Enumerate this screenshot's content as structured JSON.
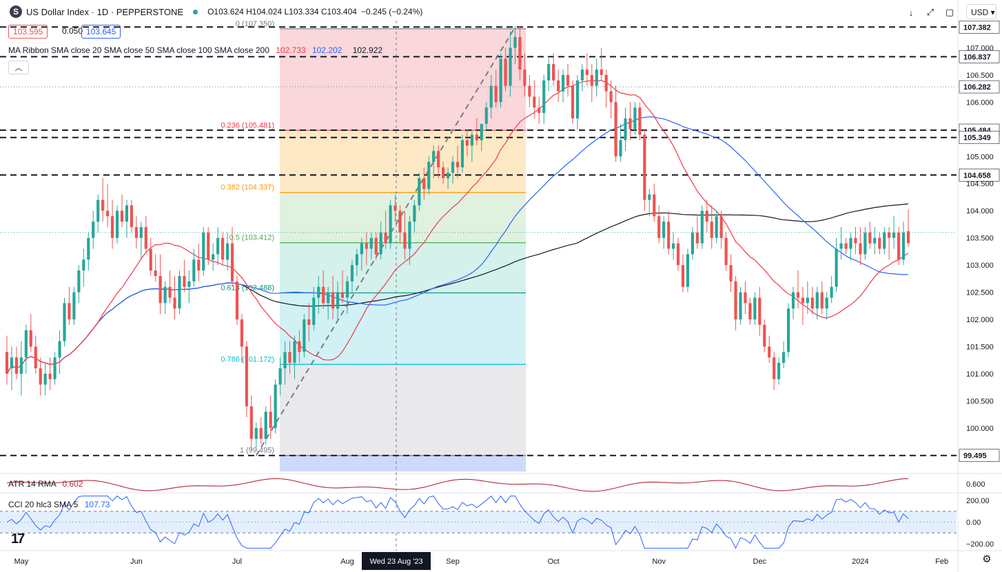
{
  "header": {
    "logo_letter": "S",
    "title": "US Dollar Index · 1D · PEPPERSTONE",
    "ohlc": "O103.624 H104.024 L103.334 C103.404",
    "change": "−0.245 (−0.24%)"
  },
  "quote": {
    "sell": "103.595",
    "spread": "0.050",
    "buy": "103.645"
  },
  "ribbon": {
    "label": "MA Ribbon SMA close 20 SMA close 50 SMA close 100 SMA close 200",
    "v20": "102.733",
    "v50": "102.202",
    "v100": "",
    "v200": "102.922"
  },
  "toolbar": {
    "down": "↓",
    "expand": "⤢",
    "square": "▢",
    "currency": "USD"
  },
  "panels": {
    "atr": {
      "label": "ATR 14 RMA",
      "value": "0.602"
    },
    "cci": {
      "label": "CCI 20 hlc3 SMA 5",
      "value": "107.73"
    }
  },
  "crosshair_date": "Wed 23 Aug '23",
  "colors": {
    "up": "#26a69a",
    "down": "#ef5350",
    "sma20": "#f23645",
    "sma50": "#2962ff",
    "sma200": "#131722"
  },
  "chart_data": {
    "type": "candlestick",
    "title": "US Dollar Index · 1D · PEPPERSTONE",
    "ylim": [
      99.2,
      107.5
    ],
    "y_ticks": [
      100.0,
      100.5,
      101.0,
      101.5,
      102.0,
      102.5,
      103.0,
      103.5,
      104.0,
      104.5,
      105.0,
      105.5,
      106.0,
      106.5,
      107.0
    ],
    "x_ticks": [
      "May",
      "Jun",
      "Jul",
      "Aug",
      "Sep",
      "Oct",
      "Nov",
      "Dec",
      "2024",
      "Feb"
    ],
    "horizontal_levels": [
      107.382,
      106.837,
      105.484,
      105.349,
      104.658,
      99.495
    ],
    "dotted_levels": [
      106.282,
      103.6
    ],
    "fibonacci": [
      {
        "ratio": "0",
        "price": 107.35
      },
      {
        "ratio": "0.236",
        "price": 105.481
      },
      {
        "ratio": "0.382",
        "price": 104.337
      },
      {
        "ratio": "0.5",
        "price": 103.412
      },
      {
        "ratio": "0.618",
        "price": 102.488
      },
      {
        "ratio": "0.786",
        "price": 101.172
      },
      {
        "ratio": "1",
        "price": 99.495
      }
    ],
    "candles": [
      [
        101.4,
        101.7,
        100.8,
        101.0
      ],
      [
        101.1,
        101.5,
        100.7,
        101.3
      ],
      [
        101.3,
        101.5,
        100.9,
        101.0
      ],
      [
        101.0,
        101.6,
        100.6,
        101.3
      ],
      [
        101.3,
        101.9,
        101.0,
        101.8
      ],
      [
        101.8,
        102.1,
        101.4,
        101.5
      ],
      [
        101.5,
        101.7,
        101.0,
        101.1
      ],
      [
        101.1,
        101.3,
        100.6,
        100.8
      ],
      [
        100.8,
        101.2,
        100.6,
        101.0
      ],
      [
        101.0,
        101.3,
        100.7,
        100.9
      ],
      [
        100.9,
        101.4,
        100.8,
        101.3
      ],
      [
        101.3,
        101.8,
        101.0,
        101.6
      ],
      [
        101.6,
        102.4,
        101.5,
        102.3
      ],
      [
        102.3,
        102.6,
        101.9,
        102.0
      ],
      [
        102.0,
        102.6,
        101.9,
        102.5
      ],
      [
        102.5,
        103.0,
        102.3,
        102.9
      ],
      [
        102.9,
        103.3,
        102.6,
        103.1
      ],
      [
        103.1,
        103.6,
        102.9,
        103.5
      ],
      [
        103.5,
        104.0,
        103.3,
        103.8
      ],
      [
        103.8,
        104.3,
        103.6,
        104.2
      ],
      [
        104.2,
        104.6,
        103.8,
        104.0
      ],
      [
        104.0,
        104.5,
        103.7,
        103.9
      ],
      [
        103.9,
        104.2,
        103.3,
        103.5
      ],
      [
        103.5,
        104.1,
        103.4,
        104.0
      ],
      [
        104.0,
        104.3,
        103.7,
        103.8
      ],
      [
        103.8,
        104.2,
        103.5,
        104.1
      ],
      [
        104.1,
        104.2,
        103.6,
        103.7
      ],
      [
        103.7,
        103.9,
        103.3,
        103.5
      ],
      [
        103.5,
        103.8,
        103.1,
        103.7
      ],
      [
        103.7,
        103.9,
        103.2,
        103.3
      ],
      [
        103.3,
        103.5,
        102.8,
        102.9
      ],
      [
        102.9,
        103.2,
        102.7,
        102.8
      ],
      [
        102.8,
        103.2,
        102.1,
        102.3
      ],
      [
        102.3,
        102.7,
        102.1,
        102.6
      ],
      [
        102.6,
        102.9,
        102.3,
        102.4
      ],
      [
        102.4,
        102.8,
        102.0,
        102.2
      ],
      [
        102.2,
        102.9,
        102.1,
        102.8
      ],
      [
        102.8,
        103.1,
        102.5,
        102.6
      ],
      [
        102.6,
        102.9,
        102.3,
        102.7
      ],
      [
        102.7,
        103.3,
        102.6,
        103.1
      ],
      [
        103.1,
        103.4,
        102.7,
        102.9
      ],
      [
        102.9,
        103.7,
        102.8,
        103.6
      ],
      [
        103.6,
        103.7,
        103.0,
        103.1
      ],
      [
        103.1,
        103.4,
        102.9,
        103.2
      ],
      [
        103.2,
        103.7,
        103.0,
        103.5
      ],
      [
        103.5,
        103.6,
        103.0,
        103.1
      ],
      [
        103.1,
        103.6,
        102.9,
        103.4
      ],
      [
        103.4,
        103.7,
        102.6,
        102.7
      ],
      [
        102.7,
        102.8,
        101.9,
        102.0
      ],
      [
        102.0,
        102.1,
        101.2,
        101.5
      ],
      [
        101.5,
        101.6,
        100.2,
        100.4
      ],
      [
        100.4,
        100.6,
        99.6,
        99.8
      ],
      [
        99.8,
        100.1,
        99.6,
        100.0
      ],
      [
        100.0,
        100.2,
        99.7,
        99.8
      ],
      [
        99.8,
        100.4,
        99.7,
        100.3
      ],
      [
        100.3,
        100.6,
        99.8,
        100.0
      ],
      [
        100.0,
        100.9,
        99.9,
        100.8
      ],
      [
        100.8,
        101.3,
        100.6,
        101.1
      ],
      [
        101.1,
        101.6,
        100.8,
        101.4
      ],
      [
        101.4,
        101.6,
        101.0,
        101.2
      ],
      [
        101.2,
        101.7,
        100.9,
        101.6
      ],
      [
        101.6,
        101.8,
        101.2,
        101.4
      ],
      [
        101.4,
        102.1,
        101.3,
        102.0
      ],
      [
        102.0,
        102.3,
        101.6,
        101.9
      ],
      [
        101.9,
        102.6,
        101.8,
        102.4
      ],
      [
        102.4,
        102.8,
        102.1,
        102.6
      ],
      [
        102.6,
        102.9,
        102.2,
        102.3
      ],
      [
        102.3,
        102.6,
        102.0,
        102.5
      ],
      [
        102.5,
        102.8,
        102.0,
        102.2
      ],
      [
        102.2,
        102.7,
        102.0,
        102.5
      ],
      [
        102.5,
        102.9,
        102.3,
        102.4
      ],
      [
        102.4,
        102.8,
        102.1,
        102.7
      ],
      [
        102.7,
        103.1,
        102.5,
        103.0
      ],
      [
        103.0,
        103.3,
        102.8,
        103.2
      ],
      [
        103.2,
        103.5,
        102.9,
        103.4
      ],
      [
        103.4,
        103.6,
        103.0,
        103.3
      ],
      [
        103.3,
        103.6,
        103.1,
        103.5
      ],
      [
        103.5,
        103.6,
        103.1,
        103.2
      ],
      [
        103.2,
        103.8,
        103.1,
        103.6
      ],
      [
        103.6,
        104.0,
        103.3,
        103.4
      ],
      [
        103.4,
        104.2,
        103.3,
        104.1
      ],
      [
        104.1,
        104.3,
        103.8,
        104.0
      ],
      [
        104.0,
        104.1,
        103.4,
        103.6
      ],
      [
        103.6,
        104.0,
        103.1,
        103.3
      ],
      [
        103.3,
        103.9,
        103.0,
        103.8
      ],
      [
        103.8,
        104.2,
        103.6,
        104.1
      ],
      [
        104.1,
        104.7,
        104.0,
        104.6
      ],
      [
        104.6,
        104.8,
        104.2,
        104.4
      ],
      [
        104.4,
        105.0,
        104.3,
        104.9
      ],
      [
        104.9,
        105.2,
        104.6,
        105.1
      ],
      [
        105.1,
        105.2,
        104.6,
        104.8
      ],
      [
        104.8,
        104.9,
        104.5,
        104.6
      ],
      [
        104.6,
        104.8,
        104.4,
        104.7
      ],
      [
        104.7,
        105.0,
        104.5,
        104.9
      ],
      [
        104.9,
        105.2,
        104.6,
        104.8
      ],
      [
        104.8,
        105.4,
        104.7,
        105.3
      ],
      [
        105.3,
        105.5,
        105.0,
        105.2
      ],
      [
        105.2,
        105.5,
        104.9,
        105.4
      ],
      [
        105.4,
        105.7,
        105.2,
        105.3
      ],
      [
        105.3,
        105.6,
        105.1,
        105.6
      ],
      [
        105.6,
        106.0,
        105.5,
        105.9
      ],
      [
        105.9,
        106.5,
        105.7,
        106.3
      ],
      [
        106.3,
        106.6,
        105.9,
        106.0
      ],
      [
        106.0,
        106.9,
        105.9,
        106.8
      ],
      [
        106.8,
        107.0,
        106.2,
        106.3
      ],
      [
        106.3,
        107.3,
        106.1,
        107.0
      ],
      [
        107.0,
        107.4,
        106.7,
        107.2
      ],
      [
        107.2,
        107.4,
        106.4,
        106.6
      ],
      [
        106.6,
        106.9,
        106.1,
        106.3
      ],
      [
        106.3,
        106.5,
        105.9,
        106.1
      ],
      [
        106.1,
        106.4,
        105.7,
        105.9
      ],
      [
        105.9,
        106.1,
        105.6,
        105.8
      ],
      [
        105.8,
        106.5,
        105.6,
        106.4
      ],
      [
        106.4,
        106.8,
        106.2,
        106.7
      ],
      [
        106.7,
        106.9,
        106.3,
        106.4
      ],
      [
        106.4,
        106.6,
        106.0,
        106.2
      ],
      [
        106.2,
        106.6,
        106.0,
        106.5
      ],
      [
        106.5,
        106.7,
        106.1,
        106.3
      ],
      [
        106.3,
        106.4,
        105.6,
        105.7
      ],
      [
        105.7,
        106.5,
        105.5,
        106.4
      ],
      [
        106.4,
        106.7,
        106.2,
        106.6
      ],
      [
        106.6,
        106.9,
        106.3,
        106.5
      ],
      [
        106.5,
        106.7,
        106.0,
        106.3
      ],
      [
        106.3,
        106.8,
        106.1,
        106.6
      ],
      [
        106.6,
        107.0,
        106.4,
        106.5
      ],
      [
        106.5,
        106.6,
        105.9,
        106.2
      ],
      [
        106.2,
        106.4,
        105.7,
        106.0
      ],
      [
        106.0,
        106.3,
        104.9,
        105.0
      ],
      [
        105.0,
        105.6,
        104.9,
        105.3
      ],
      [
        105.3,
        105.9,
        105.1,
        105.7
      ],
      [
        105.7,
        106.0,
        105.3,
        105.5
      ],
      [
        105.5,
        106.0,
        105.4,
        105.9
      ],
      [
        105.9,
        106.0,
        105.3,
        105.4
      ],
      [
        105.4,
        105.5,
        104.0,
        104.2
      ],
      [
        104.2,
        104.4,
        103.9,
        104.3
      ],
      [
        104.3,
        104.5,
        103.8,
        103.9
      ],
      [
        103.9,
        104.1,
        103.4,
        103.5
      ],
      [
        103.5,
        103.9,
        103.3,
        103.8
      ],
      [
        103.8,
        104.0,
        103.2,
        103.3
      ],
      [
        103.3,
        103.6,
        103.1,
        103.4
      ],
      [
        103.4,
        103.5,
        102.9,
        103.0
      ],
      [
        103.0,
        103.2,
        102.5,
        102.6
      ],
      [
        102.6,
        103.3,
        102.5,
        103.2
      ],
      [
        103.2,
        103.7,
        103.1,
        103.6
      ],
      [
        103.6,
        103.9,
        103.3,
        103.4
      ],
      [
        103.4,
        104.1,
        103.3,
        104.0
      ],
      [
        104.0,
        104.2,
        103.6,
        103.8
      ],
      [
        103.8,
        104.1,
        103.3,
        103.5
      ],
      [
        103.5,
        104.0,
        103.4,
        103.9
      ],
      [
        103.9,
        104.0,
        103.3,
        103.5
      ],
      [
        103.5,
        103.6,
        102.9,
        103.0
      ],
      [
        103.0,
        103.2,
        102.5,
        102.7
      ],
      [
        102.7,
        102.8,
        101.8,
        102.0
      ],
      [
        102.0,
        102.6,
        101.9,
        102.5
      ],
      [
        102.5,
        102.7,
        102.1,
        102.3
      ],
      [
        102.3,
        102.4,
        101.9,
        102.0
      ],
      [
        102.0,
        102.5,
        101.9,
        102.4
      ],
      [
        102.4,
        102.6,
        101.7,
        101.9
      ],
      [
        101.9,
        102.0,
        101.4,
        101.5
      ],
      [
        101.5,
        101.7,
        101.2,
        101.3
      ],
      [
        101.3,
        101.4,
        100.7,
        100.9
      ],
      [
        100.9,
        101.3,
        100.8,
        101.2
      ],
      [
        101.2,
        101.6,
        101.1,
        101.4
      ],
      [
        101.4,
        102.3,
        101.3,
        102.2
      ],
      [
        102.2,
        102.6,
        102.0,
        102.5
      ],
      [
        102.5,
        102.9,
        102.2,
        102.4
      ],
      [
        102.4,
        102.6,
        101.9,
        102.3
      ],
      [
        102.3,
        102.7,
        102.1,
        102.4
      ],
      [
        102.4,
        102.6,
        102.1,
        102.2
      ],
      [
        102.2,
        102.6,
        102.0,
        102.5
      ],
      [
        102.5,
        102.7,
        102.1,
        102.2
      ],
      [
        102.2,
        102.5,
        102.0,
        102.4
      ],
      [
        102.4,
        102.8,
        102.3,
        102.6
      ],
      [
        102.6,
        103.5,
        102.5,
        103.3
      ],
      [
        103.3,
        103.7,
        103.1,
        103.4
      ],
      [
        103.4,
        103.5,
        103.2,
        103.3
      ],
      [
        103.3,
        103.6,
        103.1,
        103.5
      ],
      [
        103.5,
        103.7,
        103.2,
        103.4
      ],
      [
        103.4,
        103.7,
        103.0,
        103.2
      ],
      [
        103.2,
        103.7,
        103.1,
        103.6
      ],
      [
        103.6,
        103.8,
        103.3,
        103.4
      ],
      [
        103.4,
        103.7,
        103.2,
        103.5
      ],
      [
        103.5,
        103.6,
        103.2,
        103.3
      ],
      [
        103.3,
        103.7,
        103.2,
        103.6
      ],
      [
        103.6,
        103.7,
        103.1,
        103.5
      ],
      [
        103.5,
        103.9,
        103.3,
        103.6
      ],
      [
        103.6,
        103.7,
        103.0,
        103.1
      ],
      [
        103.1,
        103.8,
        103.0,
        103.6
      ],
      [
        103.624,
        104.024,
        103.334,
        103.404
      ]
    ]
  }
}
